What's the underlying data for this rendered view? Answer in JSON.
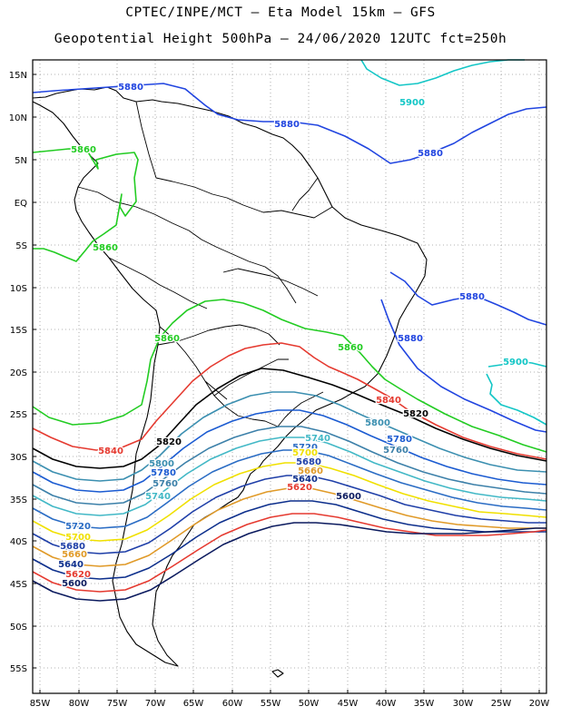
{
  "title_line1": "CPTEC/INPE/MCT –  Eta Model 15km – GFS",
  "title_line2": "Geopotential Height 500hPa – 24/06/2020 12UTC fct=250h",
  "lat_labels": [
    "15N",
    "10N",
    "5N",
    "EQ",
    "5S",
    "10S",
    "15S",
    "20S",
    "25S",
    "30S",
    "35S",
    "40S",
    "45S",
    "50S",
    "55S"
  ],
  "lon_labels": [
    "85W",
    "80W",
    "75W",
    "70W",
    "65W",
    "60W",
    "55W",
    "50W",
    "45W",
    "40W",
    "35W",
    "30W",
    "25W",
    "20W"
  ],
  "contours": [
    {
      "value": "5900",
      "color": "#13c6c6"
    },
    {
      "value": "5880",
      "color": "#2145e0"
    },
    {
      "value": "5860",
      "color": "#22cc22"
    },
    {
      "value": "5840",
      "color": "#e53a30"
    },
    {
      "value": "5820",
      "color": "#000000"
    },
    {
      "value": "5800",
      "color": "#3b8fb0"
    },
    {
      "value": "5780",
      "color": "#1b5bd1"
    },
    {
      "value": "5760",
      "color": "#3c80a9"
    },
    {
      "value": "5740",
      "color": "#42b8c6"
    },
    {
      "value": "5720",
      "color": "#2a6cc4"
    },
    {
      "value": "5700",
      "color": "#f0e000"
    },
    {
      "value": "5680",
      "color": "#1f3fa8"
    },
    {
      "value": "5660",
      "color": "#e09a28"
    },
    {
      "value": "5640",
      "color": "#0d2f8c"
    },
    {
      "value": "5620",
      "color": "#e53a30"
    },
    {
      "value": "5600",
      "color": "#0b1a5e"
    }
  ],
  "contour_labels": [
    {
      "text": "5900",
      "color": "#13c6c6"
    },
    {
      "text": "5880",
      "color": "#2145e0"
    },
    {
      "text": "5880",
      "color": "#2145e0"
    },
    {
      "text": "5880",
      "color": "#2145e0"
    },
    {
      "text": "5880",
      "color": "#2145e0"
    },
    {
      "text": "5880",
      "color": "#2145e0"
    },
    {
      "text": "5900",
      "color": "#13c6c6"
    },
    {
      "text": "5860",
      "color": "#22cc22"
    },
    {
      "text": "5860",
      "color": "#22cc22"
    },
    {
      "text": "5860",
      "color": "#22cc22"
    },
    {
      "text": "5860",
      "color": "#22cc22"
    },
    {
      "text": "5840",
      "color": "#e53a30"
    },
    {
      "text": "5840",
      "color": "#e53a30"
    },
    {
      "text": "5820",
      "color": "#000000"
    },
    {
      "text": "5820",
      "color": "#000000"
    },
    {
      "text": "5800",
      "color": "#3b8fb0"
    },
    {
      "text": "5800",
      "color": "#3b8fb0"
    },
    {
      "text": "5780",
      "color": "#1b5bd1"
    },
    {
      "text": "5780",
      "color": "#1b5bd1"
    },
    {
      "text": "5760",
      "color": "#3c80a9"
    },
    {
      "text": "5760",
      "color": "#3c80a9"
    },
    {
      "text": "5740",
      "color": "#42b8c6"
    },
    {
      "text": "5740",
      "color": "#42b8c6"
    },
    {
      "text": "5720",
      "color": "#2a6cc4"
    },
    {
      "text": "5720",
      "color": "#2a6cc4"
    },
    {
      "text": "5700",
      "color": "#f0e000"
    },
    {
      "text": "5700",
      "color": "#f0e000"
    },
    {
      "text": "5680",
      "color": "#1f3fa8"
    },
    {
      "text": "5680",
      "color": "#1f3fa8"
    },
    {
      "text": "5660",
      "color": "#e09a28"
    },
    {
      "text": "5660",
      "color": "#e09a28"
    },
    {
      "text": "5640",
      "color": "#0d2f8c"
    },
    {
      "text": "5640",
      "color": "#0d2f8c"
    },
    {
      "text": "5620",
      "color": "#e53a30"
    },
    {
      "text": "5620",
      "color": "#e53a30"
    },
    {
      "text": "5600",
      "color": "#0b1a5e"
    },
    {
      "text": "5600",
      "color": "#0b1a5e"
    }
  ]
}
